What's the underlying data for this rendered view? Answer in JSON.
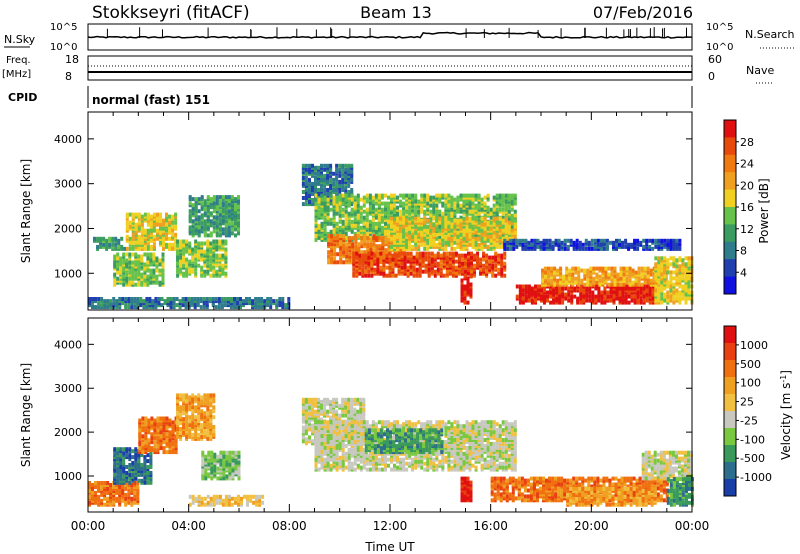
{
  "header": {
    "station": "Stokkseyri (fitACF)",
    "beam": "Beam 13",
    "date": "07/Feb/2016"
  },
  "top_panels": {
    "nsky_label": "N.Sky",
    "nsky_ticks": [
      "10^5",
      "10^0"
    ],
    "nsearch_label": "N.Search",
    "nsearch_ticks": [
      "10^5",
      "10^0"
    ],
    "freq_label": "Freq.",
    "freq_unit": "[MHz]",
    "freq_ticks": [
      "18",
      "8"
    ],
    "nave_label": "Nave",
    "nave_ticks": [
      "60",
      "0"
    ],
    "cpid_label": "CPID",
    "cpid_value": "normal (fast) 151"
  },
  "chart_data": [
    {
      "type": "heatmap",
      "name": "power-panel",
      "xlabel": "",
      "ylabel": "Slant Range [km]",
      "xlim": [
        0,
        24
      ],
      "ylim": [
        180,
        4600
      ],
      "x_ticks": [
        0,
        4,
        8,
        12,
        16,
        20,
        24
      ],
      "y_ticks": [
        1000,
        2000,
        3000,
        4000
      ],
      "y_tick_labels": [
        "1000",
        "2000",
        "3000",
        "4000"
      ],
      "colorbar": {
        "label": "Power [dB]",
        "ticks": [
          "4",
          "8",
          "12",
          "16",
          "20",
          "24",
          "28"
        ],
        "colors": [
          "#1010e0",
          "#2040b0",
          "#2e7c8c",
          "#3a9c60",
          "#66c24a",
          "#f0d020",
          "#f0a020",
          "#f07a10",
          "#e84a0c",
          "#e01010"
        ]
      },
      "regions": [
        {
          "t0": 0.2,
          "t1": 1.5,
          "r0": 1500,
          "r1": 1750,
          "level": 3
        },
        {
          "t0": 1.0,
          "t1": 3.0,
          "r0": 700,
          "r1": 1400,
          "level": 4
        },
        {
          "t0": 1.5,
          "t1": 3.5,
          "r0": 1500,
          "r1": 2300,
          "level": 5
        },
        {
          "t0": 3.5,
          "t1": 5.5,
          "r0": 900,
          "r1": 1700,
          "level": 4
        },
        {
          "t0": 4.0,
          "t1": 6.0,
          "r0": 1800,
          "r1": 2700,
          "level": 3
        },
        {
          "t0": 0.0,
          "t1": 8.0,
          "r0": 200,
          "r1": 400,
          "level": 2
        },
        {
          "t0": 8.5,
          "t1": 10.5,
          "r0": 2500,
          "r1": 3400,
          "level": 2
        },
        {
          "t0": 9.0,
          "t1": 17.0,
          "r0": 1700,
          "r1": 2700,
          "level": 4
        },
        {
          "t0": 9.5,
          "t1": 12.5,
          "r0": 1200,
          "r1": 1800,
          "level": 7
        },
        {
          "t0": 10.5,
          "t1": 16.5,
          "r0": 900,
          "r1": 1400,
          "level": 8
        },
        {
          "t0": 12.0,
          "t1": 17.0,
          "r0": 1500,
          "r1": 2200,
          "level": 5
        },
        {
          "t0": 14.8,
          "t1": 15.2,
          "r0": 300,
          "r1": 900,
          "level": 9
        },
        {
          "t0": 16.5,
          "t1": 23.5,
          "r0": 1500,
          "r1": 1700,
          "level": 1
        },
        {
          "t0": 17.0,
          "t1": 22.5,
          "r0": 300,
          "r1": 700,
          "level": 9
        },
        {
          "t0": 18.0,
          "t1": 23.0,
          "r0": 700,
          "r1": 1100,
          "level": 6
        },
        {
          "t0": 22.5,
          "t1": 24.0,
          "r0": 300,
          "r1": 1300,
          "level": 5
        }
      ]
    },
    {
      "type": "heatmap",
      "name": "velocity-panel",
      "xlabel": "Time UT",
      "ylabel": "Slant Range [km]",
      "xlim": [
        0,
        24
      ],
      "ylim": [
        180,
        4600
      ],
      "x_ticks": [
        0,
        4,
        8,
        12,
        16,
        20,
        24
      ],
      "x_tick_labels": [
        "00:00",
        "04:00",
        "08:00",
        "12:00",
        "16:00",
        "20:00",
        "00:00"
      ],
      "y_ticks": [
        1000,
        2000,
        3000,
        4000
      ],
      "y_tick_labels": [
        "1000",
        "2000",
        "3000",
        "4000"
      ],
      "colorbar": {
        "label": "Velocity [m s^-1]",
        "ticks": [
          "1000",
          "500",
          "100",
          "25",
          "-25",
          "-100",
          "-500",
          "-1000"
        ],
        "colors": [
          "#1a3ea8",
          "#2c6e8c",
          "#3a9a5c",
          "#7ac840",
          "#c8c8c0",
          "#f2c040",
          "#f0a020",
          "#f07010",
          "#e84010",
          "#e01010"
        ]
      },
      "regions": [
        {
          "t0": 0.0,
          "t1": 2.0,
          "r0": 300,
          "r1": 800,
          "level": 7
        },
        {
          "t0": 1.0,
          "t1": 2.5,
          "r0": 800,
          "r1": 1600,
          "level": 1
        },
        {
          "t0": 2.0,
          "t1": 3.5,
          "r0": 1500,
          "r1": 2300,
          "level": 7
        },
        {
          "t0": 3.5,
          "t1": 5.0,
          "r0": 1800,
          "r1": 2800,
          "level": 6
        },
        {
          "t0": 4.5,
          "t1": 6.0,
          "r0": 900,
          "r1": 1500,
          "level": 3
        },
        {
          "t0": 4.0,
          "t1": 7.0,
          "r0": 300,
          "r1": 500,
          "level": 5
        },
        {
          "t0": 8.5,
          "t1": 11.0,
          "r0": 1700,
          "r1": 2700,
          "level": 4
        },
        {
          "t0": 9.0,
          "t1": 17.0,
          "r0": 1100,
          "r1": 2200,
          "level": 4
        },
        {
          "t0": 11.0,
          "t1": 14.0,
          "r0": 1500,
          "r1": 2000,
          "level": 2
        },
        {
          "t0": 14.8,
          "t1": 15.2,
          "r0": 400,
          "r1": 900,
          "level": 9
        },
        {
          "t0": 16.0,
          "t1": 23.0,
          "r0": 400,
          "r1": 900,
          "level": 7
        },
        {
          "t0": 19.0,
          "t1": 22.5,
          "r0": 300,
          "r1": 700,
          "level": 6
        },
        {
          "t0": 22.0,
          "t1": 24.0,
          "r0": 900,
          "r1": 1500,
          "level": 4
        },
        {
          "t0": 23.0,
          "t1": 24.0,
          "r0": 300,
          "r1": 900,
          "level": 2
        }
      ]
    }
  ]
}
